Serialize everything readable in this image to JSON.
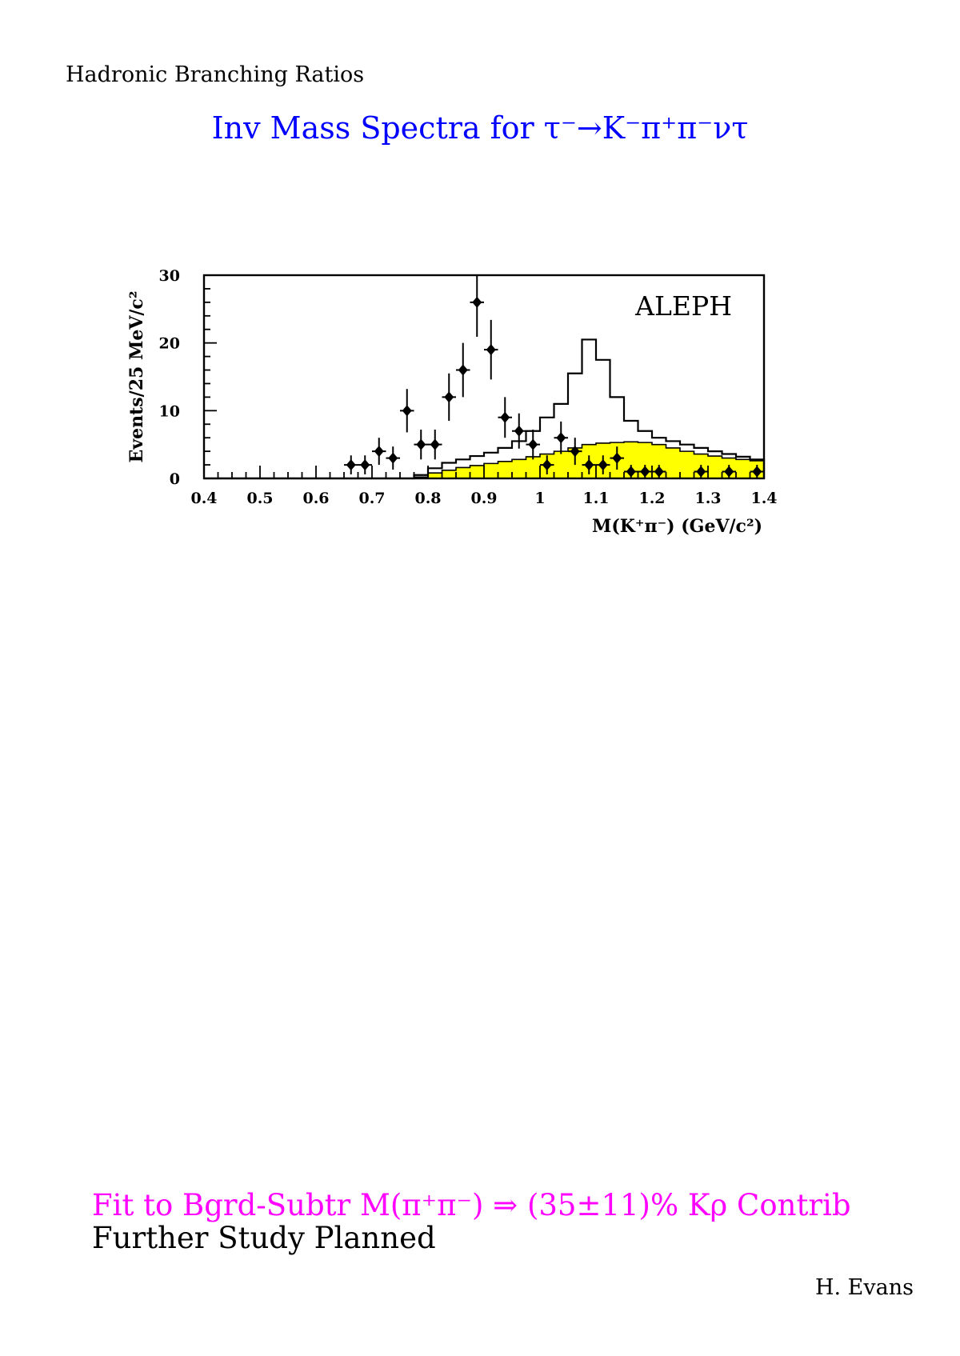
{
  "header": {
    "topic": "Hadronic Branching Ratios"
  },
  "title": "Inv Mass Spectra for τ⁻→K⁻π⁺π⁻ντ",
  "colors": {
    "title": "#0000ff",
    "note": "#ff00ff",
    "fill": "#ffff00",
    "text": "#000000"
  },
  "chart_data": [
    {
      "type": "histogram",
      "experiment_label": "ALEPH",
      "xlabel": "M(K⁺π⁻) (GeV/c²)",
      "ylabel": "Events/25 MeV/c²",
      "xlim": [
        0.4,
        1.4
      ],
      "ylim": [
        0,
        30
      ],
      "xticks": [
        0.4,
        0.5,
        0.6,
        0.7,
        0.8,
        0.9,
        1,
        1.1,
        1.2,
        1.3,
        1.4
      ],
      "xtick_labels": [
        "0.4",
        "0.5",
        "0.6",
        "0.7",
        "0.8",
        "0.9",
        "1",
        "1.1",
        "1.2",
        "1.3",
        "1.4"
      ],
      "yticks": [
        0,
        10,
        20,
        30
      ],
      "ytick_labels": [
        "0",
        "10",
        "20",
        "30"
      ],
      "bin_width": 0.025,
      "data_points": [
        {
          "x": 0.6625,
          "y": 2,
          "err": 1.4
        },
        {
          "x": 0.6875,
          "y": 2,
          "err": 1.4
        },
        {
          "x": 0.7125,
          "y": 4,
          "err": 2
        },
        {
          "x": 0.7375,
          "y": 3,
          "err": 1.7
        },
        {
          "x": 0.7625,
          "y": 10,
          "err": 3.2
        },
        {
          "x": 0.7875,
          "y": 5,
          "err": 2.2
        },
        {
          "x": 0.8125,
          "y": 5,
          "err": 2.2
        },
        {
          "x": 0.8375,
          "y": 12,
          "err": 3.5
        },
        {
          "x": 0.8625,
          "y": 16,
          "err": 4
        },
        {
          "x": 0.8875,
          "y": 26,
          "err": 5.1
        },
        {
          "x": 0.9125,
          "y": 19,
          "err": 4.4
        },
        {
          "x": 0.9375,
          "y": 9,
          "err": 3
        },
        {
          "x": 0.9625,
          "y": 7,
          "err": 2.6
        },
        {
          "x": 0.9875,
          "y": 5,
          "err": 2.2
        },
        {
          "x": 1.0125,
          "y": 2,
          "err": 1.4
        },
        {
          "x": 1.0375,
          "y": 6,
          "err": 2.4
        },
        {
          "x": 1.0625,
          "y": 4,
          "err": 2
        },
        {
          "x": 1.0875,
          "y": 2,
          "err": 1.4
        },
        {
          "x": 1.1125,
          "y": 2,
          "err": 1.4
        },
        {
          "x": 1.1375,
          "y": 3,
          "err": 1.7
        },
        {
          "x": 1.1625,
          "y": 1,
          "err": 1
        },
        {
          "x": 1.1875,
          "y": 1,
          "err": 1
        },
        {
          "x": 1.2125,
          "y": 1,
          "err": 1
        },
        {
          "x": 1.2875,
          "y": 1,
          "err": 1
        },
        {
          "x": 1.3375,
          "y": 1,
          "err": 1
        },
        {
          "x": 1.3875,
          "y": 1,
          "err": 1
        }
      ],
      "series": [
        {
          "name": "",
          "style": "filled",
          "values": [
            0,
            0,
            0,
            0,
            0,
            0,
            0,
            0,
            0,
            0,
            0,
            0,
            0,
            0,
            0,
            0.2,
            0.8,
            1.2,
            1.6,
            1.9,
            2.2,
            2.5,
            2.8,
            3.2,
            3.6,
            4,
            4.5,
            5,
            5.2,
            5.3,
            5.4,
            5.3,
            5,
            4.5,
            4,
            3.6,
            3.3,
            3,
            2.8,
            2.6
          ]
        },
        {
          "name": "",
          "style": "solid",
          "values": [
            0,
            0,
            0,
            0,
            0,
            0,
            0,
            0,
            0,
            0,
            0,
            0,
            0,
            0,
            0,
            0.5,
            1.5,
            2.3,
            2.8,
            3.3,
            3.8,
            4.5,
            5.5,
            7,
            9,
            11,
            15.5,
            20.5,
            17.5,
            12,
            8.5,
            7,
            6,
            5.5,
            5,
            4.5,
            4,
            3.6,
            3.2,
            2.8
          ]
        },
        {
          "name": "",
          "style": "dashed",
          "values": [
            0,
            0,
            0,
            0,
            0,
            0,
            0,
            0,
            0,
            0,
            0,
            0,
            0,
            0,
            0,
            0,
            0,
            0,
            0,
            0,
            0,
            0,
            0,
            0,
            0,
            0,
            0,
            0,
            0,
            0,
            0,
            0,
            0,
            0,
            0,
            0,
            0,
            0,
            0,
            0
          ]
        }
      ]
    }
  ],
  "footer": {
    "note": "Fit to Bgrd-Subtr M(π⁺π⁻) ⇒ (35±11)% Kρ Contrib",
    "plan": "Further Study Planned",
    "author": "H. Evans"
  }
}
